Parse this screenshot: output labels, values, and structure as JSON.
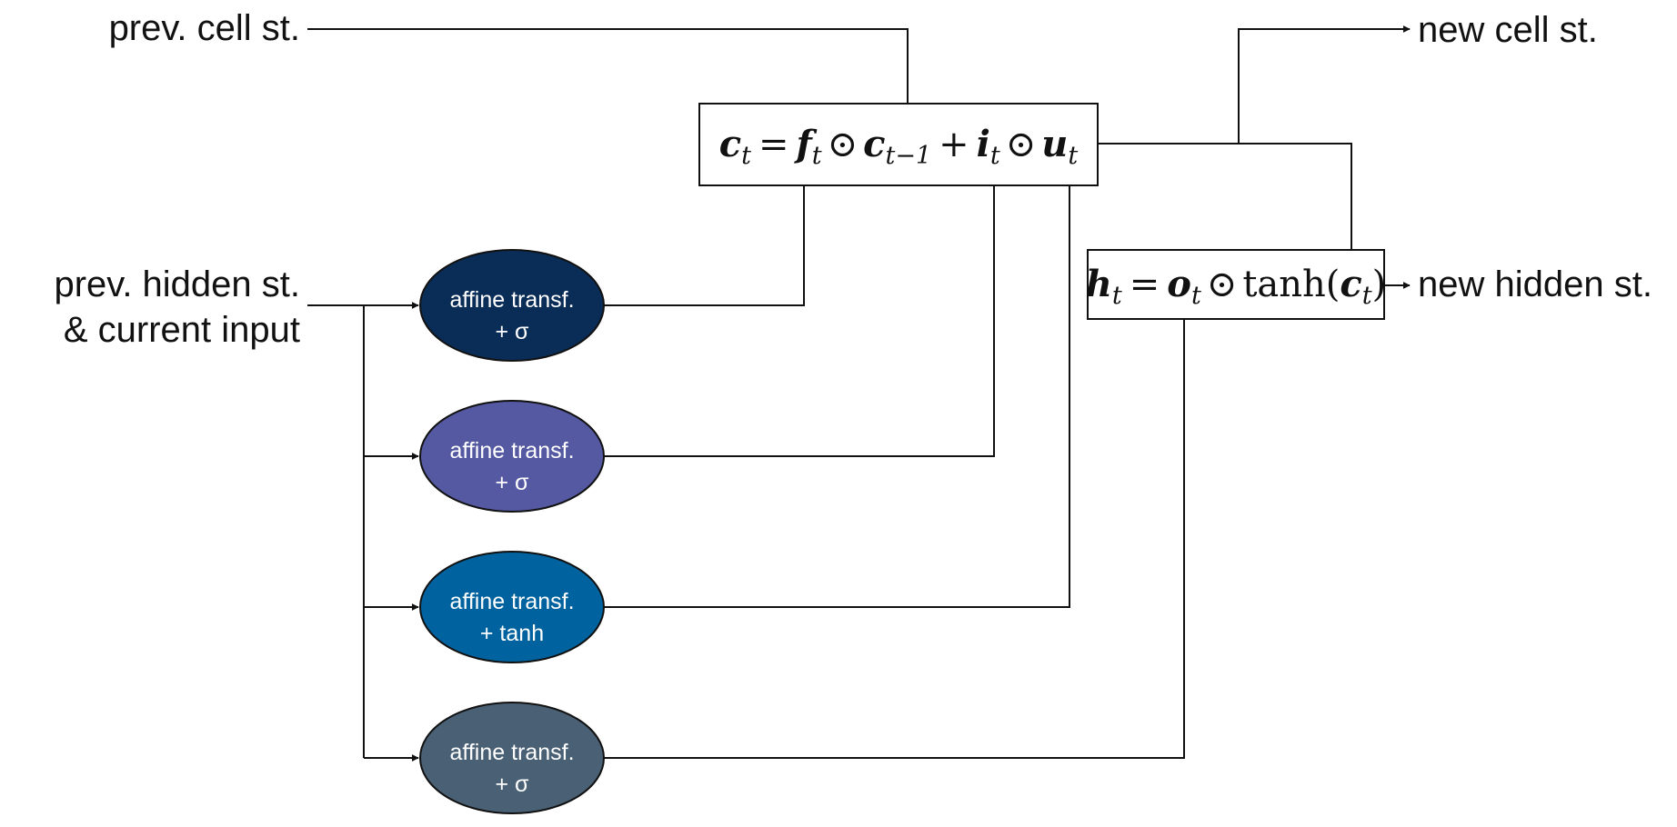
{
  "labels": {
    "prev_cell": "prev. cell st.",
    "prev_hidden_line1": "prev. hidden st.",
    "prev_hidden_line2": "& current input",
    "new_cell": "new cell st.",
    "new_hidden": "new hidden st."
  },
  "nodes": [
    {
      "line1": "affine transf.",
      "line2": "+ σ",
      "color": "#0a2d57"
    },
    {
      "line1": "affine transf.",
      "line2": "+ σ",
      "color": "#5559a2"
    },
    {
      "line1": "affine transf.",
      "line2": "+ tanh",
      "color": "#00629e"
    },
    {
      "line1": "affine transf.",
      "line2": "+ σ",
      "color": "#4a6075"
    }
  ],
  "equations": {
    "cell": {
      "c": "c",
      "t": "t",
      "eq": "=",
      "f": "f",
      "odot": "⊙",
      "t_minus_1": "t−1",
      "plus": "+",
      "i": "i",
      "u": "u"
    },
    "hidden": {
      "h": "h",
      "t": "t",
      "eq": "=",
      "o": "o",
      "odot": "⊙",
      "tanh": "tanh(",
      "c": "c",
      "close": ")"
    }
  }
}
